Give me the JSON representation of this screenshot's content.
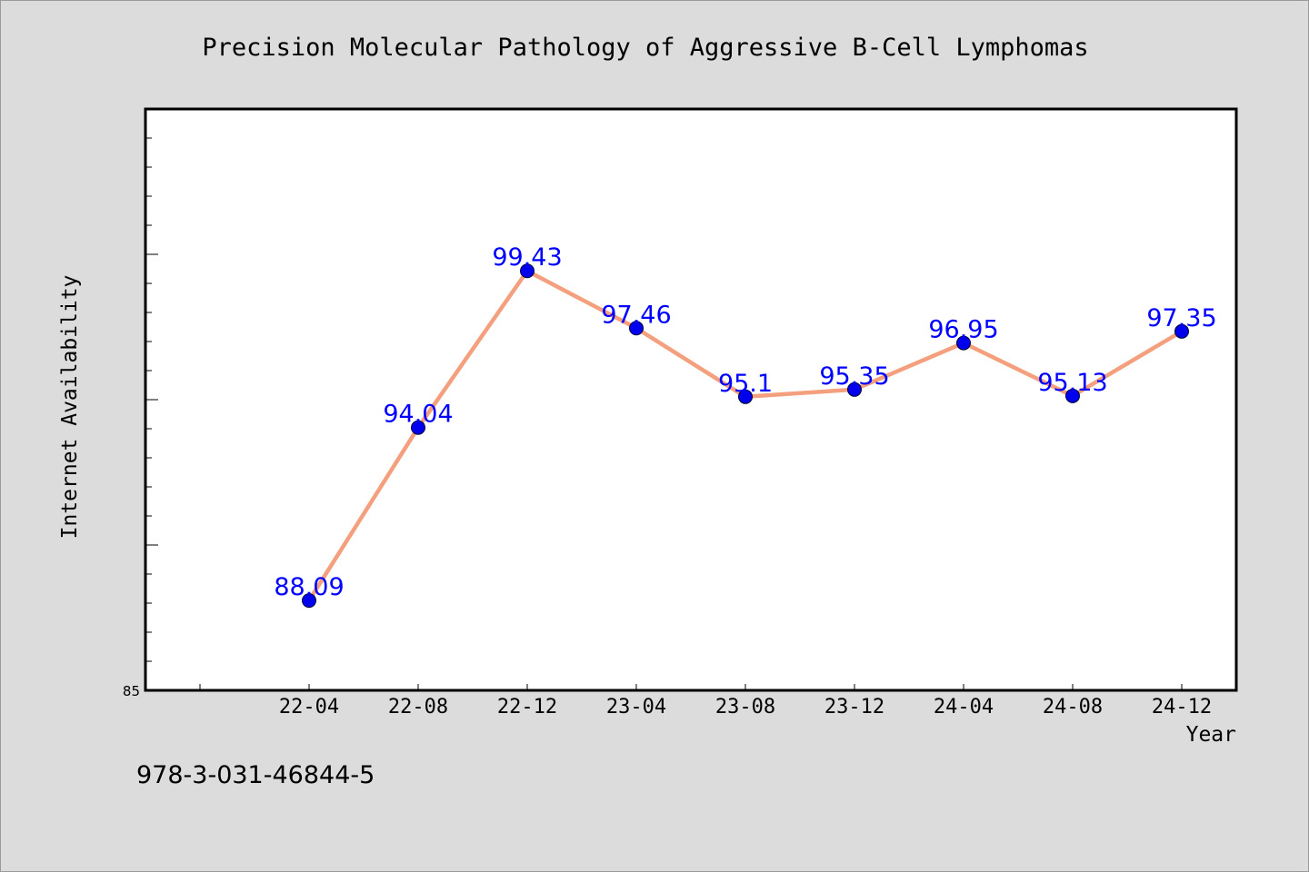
{
  "chart_data": {
    "type": "line",
    "title": "Precision Molecular Pathology of Aggressive B-Cell Lymphomas",
    "xlabel": "Year",
    "ylabel": "Internet Availability",
    "categories": [
      "22-04",
      "22-08",
      "22-12",
      "23-04",
      "23-08",
      "23-12",
      "24-04",
      "24-08",
      "24-12"
    ],
    "series": [
      {
        "values": [
          88.09,
          94.04,
          99.43,
          97.46,
          95.1,
          95.35,
          96.95,
          95.13,
          97.35
        ],
        "labels": [
          "88.09",
          "94.04",
          "99.43",
          "97.46",
          "95.1",
          "95.35",
          "96.95",
          "95.13",
          "97.35"
        ]
      }
    ],
    "ylim": [
      85,
      105
    ],
    "yticks_labeled": [
      "85"
    ],
    "grid": false,
    "legend": "none",
    "colors": {
      "line": "#f4a07e",
      "marker": "#0000ee",
      "data_label": "#0000ff",
      "plot_bg": "#ffffff",
      "page_bg": "#dcdcdc"
    }
  },
  "footer_text": "978-3-031-46844-5"
}
